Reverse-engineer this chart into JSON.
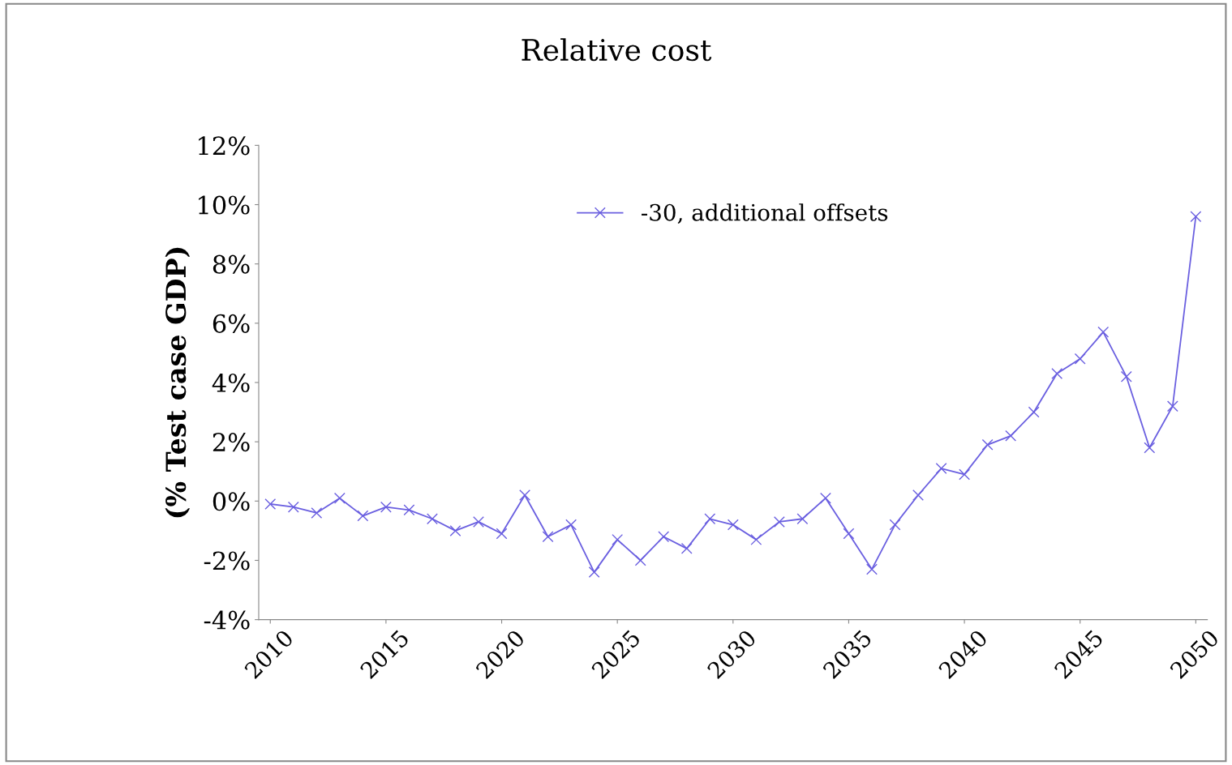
{
  "chart_data": {
    "type": "line",
    "title": "Relative cost",
    "ylabel": "(% Test case GDP)",
    "x": [
      2010,
      2011,
      2012,
      2013,
      2014,
      2015,
      2016,
      2017,
      2018,
      2019,
      2020,
      2021,
      2022,
      2023,
      2024,
      2025,
      2026,
      2027,
      2028,
      2029,
      2030,
      2031,
      2032,
      2033,
      2034,
      2035,
      2036,
      2037,
      2038,
      2039,
      2040,
      2041,
      2042,
      2043,
      2044,
      2045,
      2046,
      2047,
      2048,
      2049,
      2050
    ],
    "series": [
      {
        "name": "-30, additional offsets",
        "color": "#6a5fe0",
        "values": [
          -0.1,
          -0.2,
          -0.4,
          0.1,
          -0.5,
          -0.2,
          -0.3,
          -0.6,
          -1.0,
          -0.7,
          -1.1,
          0.2,
          -1.2,
          -0.8,
          -2.4,
          -1.3,
          -2.0,
          -1.2,
          -1.6,
          -0.6,
          -0.8,
          -1.3,
          -0.7,
          -0.6,
          0.1,
          -1.1,
          -2.3,
          -0.8,
          0.2,
          1.1,
          0.9,
          1.9,
          2.2,
          3.0,
          4.3,
          4.8,
          5.7,
          4.2,
          1.8,
          3.2,
          9.6
        ]
      }
    ],
    "xlim": [
      2009.5,
      2050.5
    ],
    "xticks": [
      2010,
      2015,
      2020,
      2025,
      2030,
      2035,
      2040,
      2045,
      2050
    ],
    "ylim": [
      -4,
      12
    ],
    "yticks": [
      {
        "value": -4,
        "label": "-4%"
      },
      {
        "value": -2,
        "label": "-2%"
      },
      {
        "value": 0,
        "label": "0%"
      },
      {
        "value": 2,
        "label": "2%"
      },
      {
        "value": 4,
        "label": "4%"
      },
      {
        "value": 6,
        "label": "6%"
      },
      {
        "value": 8,
        "label": "8%"
      },
      {
        "value": 10,
        "label": "10%"
      },
      {
        "value": 12,
        "label": "12%"
      }
    ],
    "grid": false,
    "legend": "top",
    "marker": "cross",
    "line_style": "solid"
  }
}
